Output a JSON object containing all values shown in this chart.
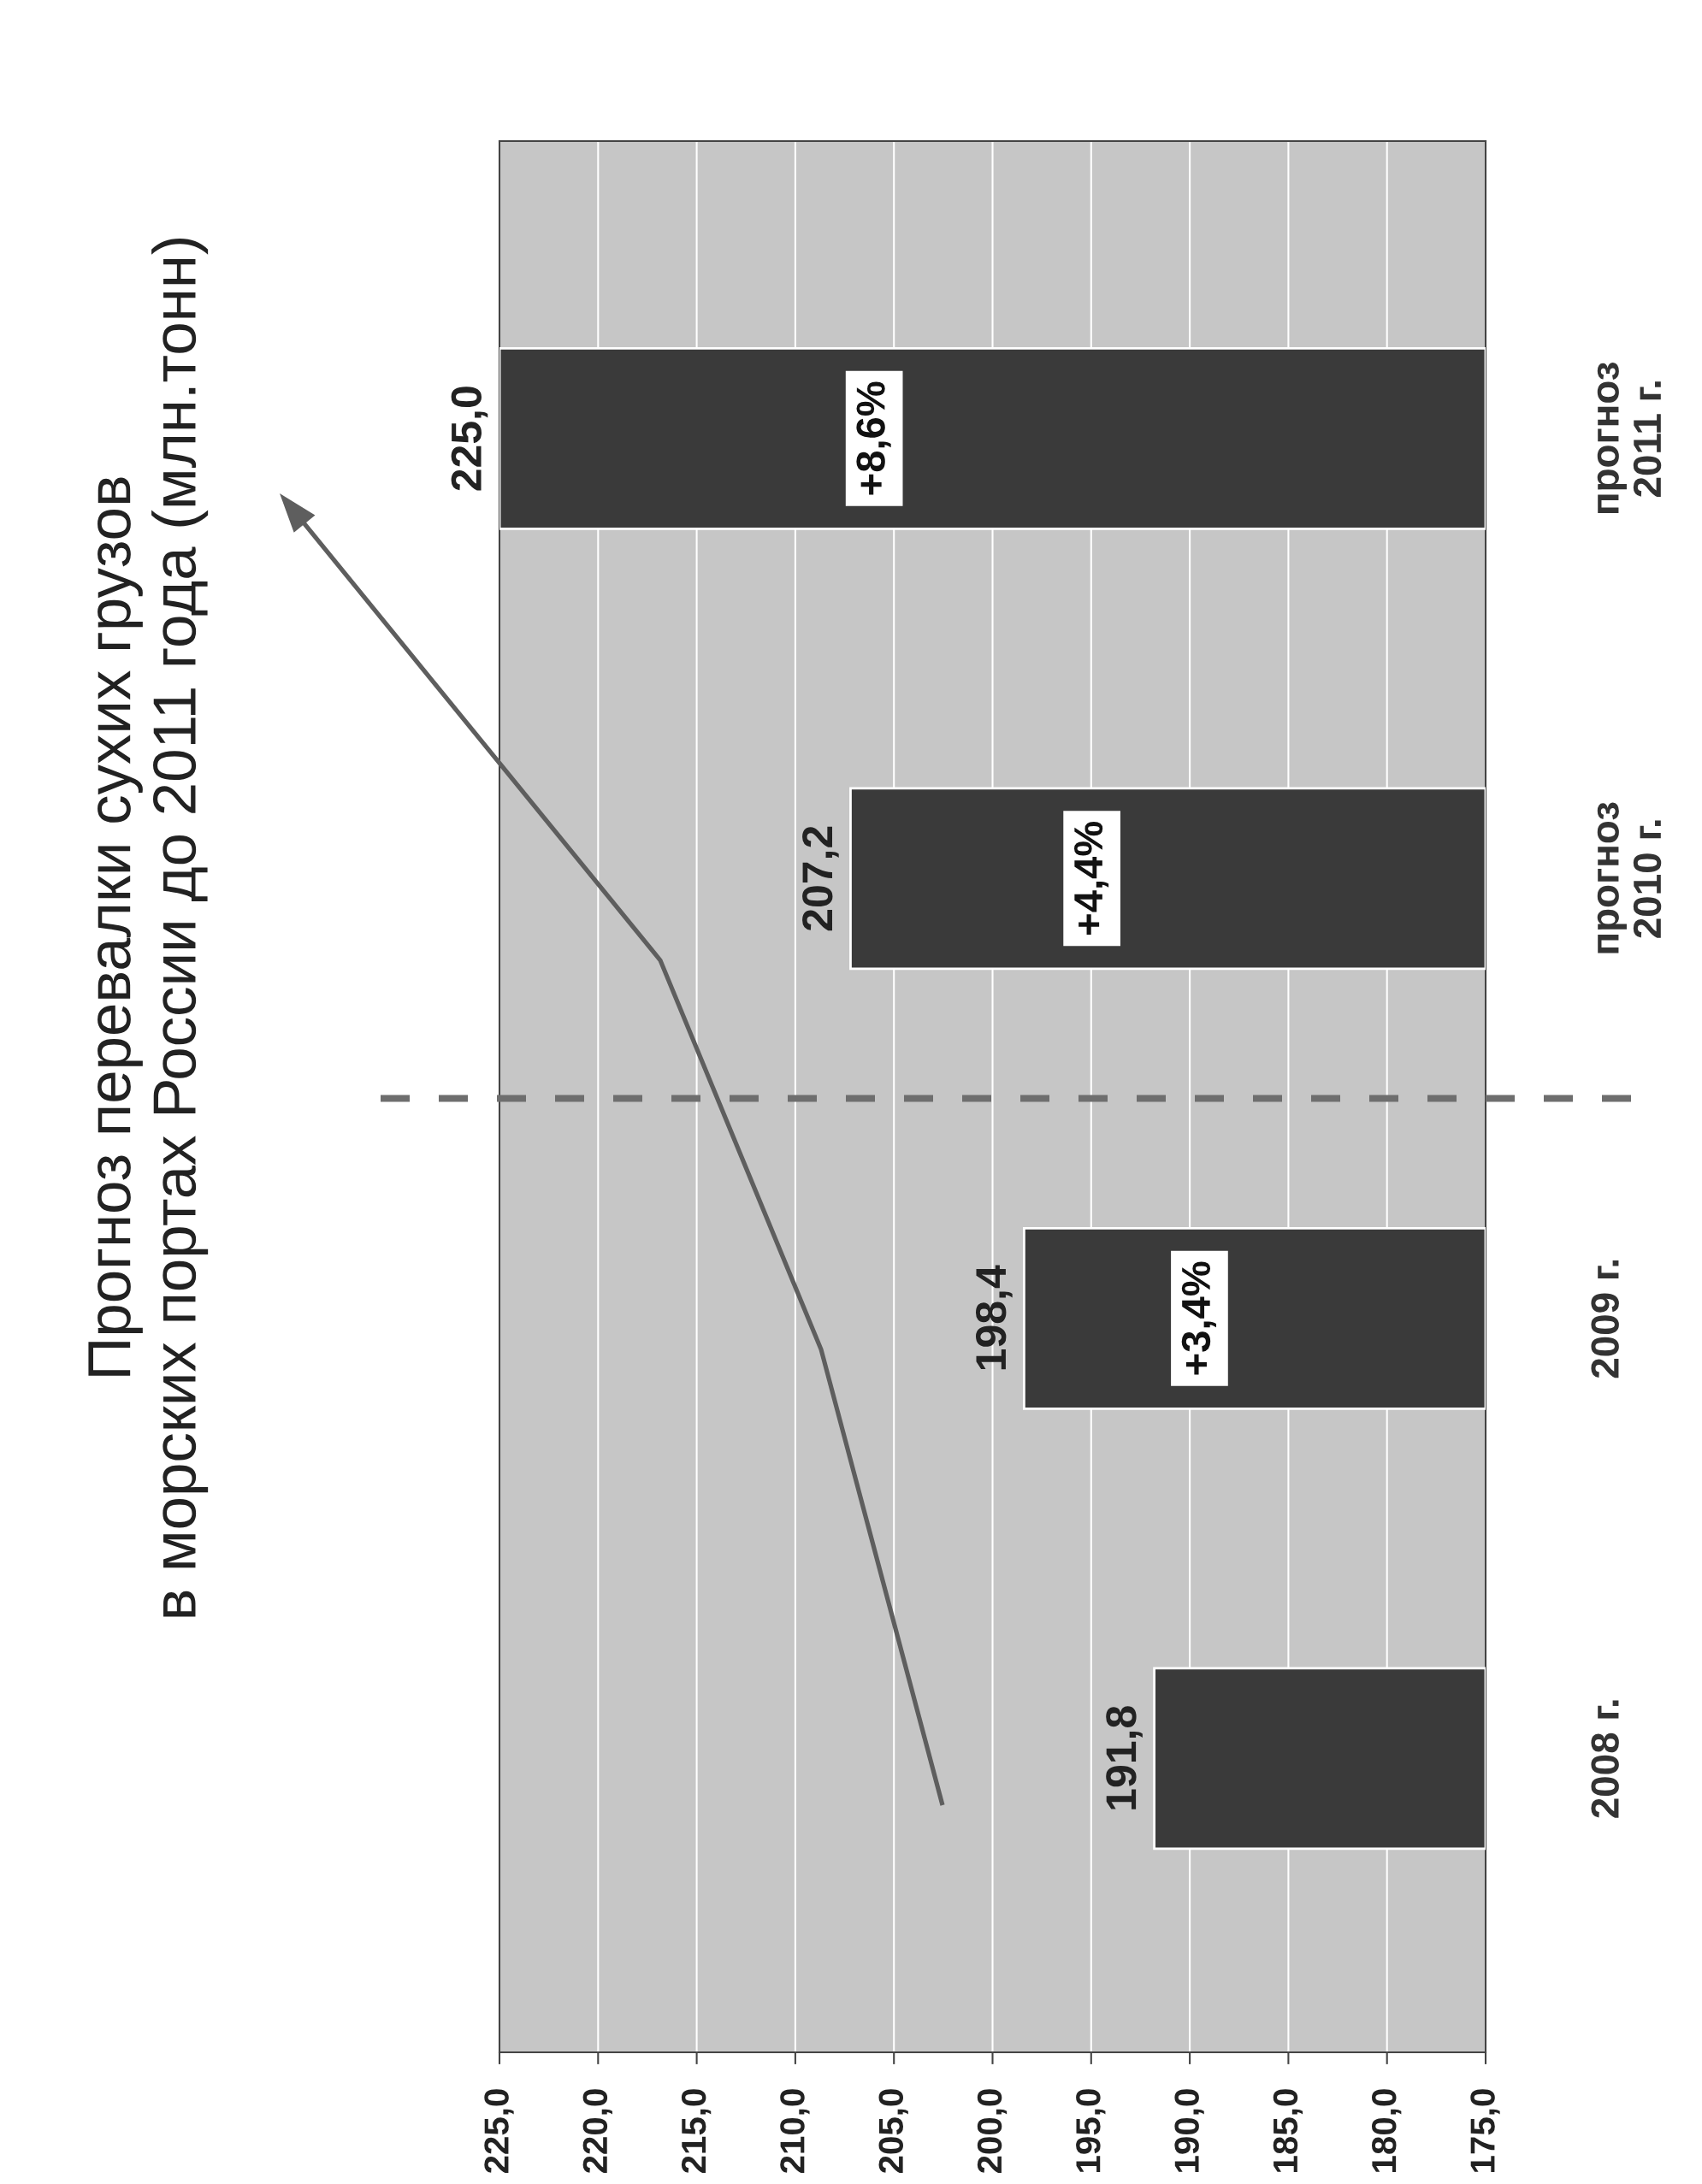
{
  "chart_data": {
    "type": "bar",
    "orientation": "horizontal",
    "title": "Прогноз перевалки сухих грузов\nв морских портах России до 2011 года (млн.тонн)",
    "categories": [
      "прогноз\n2011 г.",
      "прогноз\n2010 г.",
      "2009 г.",
      "2008 г."
    ],
    "values": [
      225.0,
      207.2,
      198.4,
      191.8
    ],
    "value_labels": [
      "225,0",
      "207,2",
      "198,4",
      "191,8"
    ],
    "color": "#3a3a3a",
    "xlim": [
      225,
      175
    ],
    "xticks": [
      {
        "value": 225,
        "label": "225,0"
      },
      {
        "value": 220,
        "label": "220,0"
      },
      {
        "value": 215,
        "label": "215,0"
      },
      {
        "value": 210,
        "label": "210,0"
      },
      {
        "value": 205,
        "label": "205,0"
      },
      {
        "value": 200,
        "label": "200,0"
      },
      {
        "value": 195,
        "label": "195,0"
      },
      {
        "value": 190,
        "label": "190,0"
      },
      {
        "value": 185,
        "label": "185,0"
      },
      {
        "value": 180,
        "label": "180,0"
      },
      {
        "value": 175,
        "label": "175,0"
      }
    ],
    "grid": "x",
    "annotations": [
      "+8,6%",
      "+4,4%",
      "+3,4%"
    ]
  }
}
